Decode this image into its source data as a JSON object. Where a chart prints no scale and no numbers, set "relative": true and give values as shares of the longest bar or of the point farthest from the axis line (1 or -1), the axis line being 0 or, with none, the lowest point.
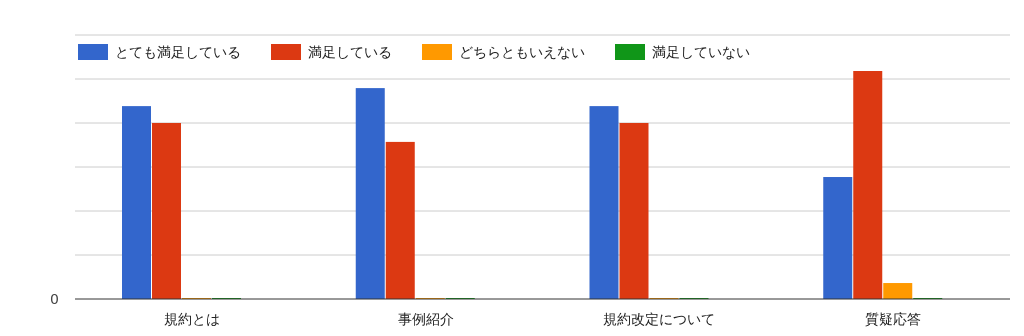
{
  "chart_data": {
    "type": "bar",
    "relative": true,
    "categories": [
      "規約とは",
      "事例紹介",
      "規約改定について",
      "質疑応答"
    ],
    "series": [
      {
        "name": "とても満足している",
        "color": "#3366cc",
        "values": [
          0.846,
          0.925,
          0.846,
          0.535
        ]
      },
      {
        "name": "満足している",
        "color": "#dc3912",
        "values": [
          0.772,
          0.689,
          0.772,
          1
        ]
      },
      {
        "name": "どちらともいえない",
        "color": "#ff9900",
        "values": [
          0,
          0,
          0,
          0.07
        ]
      },
      {
        "name": "満足していない",
        "color": "#109618",
        "values": [
          0,
          0,
          0,
          0
        ]
      }
    ],
    "annotations": [
      "0"
    ],
    "grid": "y",
    "legend": "top left"
  }
}
